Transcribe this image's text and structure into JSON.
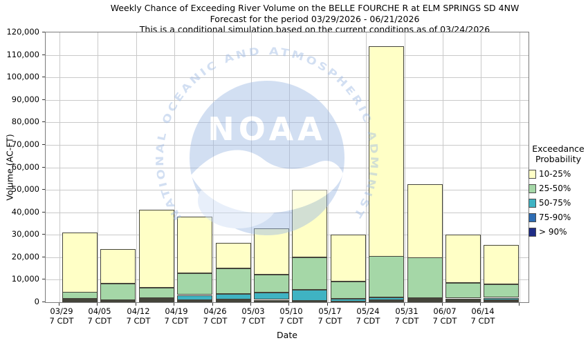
{
  "title_lines": [
    "Weekly Chance of Exceeding River Volume on the BELLE FOURCHE R at ELM SPRINGS SD 4NW",
    "Forecast for the period 03/29/2026 - 06/21/2026",
    "This is a conditional simulation based on the current conditions as of 03/24/2026"
  ],
  "y_axis": {
    "label": "Volume (AC-FT)",
    "tick_labels": [
      "0",
      "10,000",
      "20,000",
      "30,000",
      "40,000",
      "50,000",
      "60,000",
      "70,000",
      "80,000",
      "90,000",
      "100,000",
      "110,000",
      "120,000"
    ]
  },
  "x_axis": {
    "label": "Date",
    "tick_sub": "7 CDT",
    "categories": [
      "03/29",
      "04/05",
      "04/12",
      "04/19",
      "04/26",
      "05/03",
      "05/10",
      "05/17",
      "05/24",
      "05/31",
      "06/07",
      "06/14"
    ]
  },
  "legend": {
    "title_lines": [
      "Exceedance",
      "Probability"
    ],
    "items": [
      {
        "label": "10-25%",
        "color": "#FFFFC6"
      },
      {
        "label": "25-50%",
        "color": "#A5D7A7"
      },
      {
        "label": "50-75%",
        "color": "#3FB3C3"
      },
      {
        "label": "75-90%",
        "color": "#2E6DB4"
      },
      {
        "label": "> 90%",
        "color": "#1F2D86"
      }
    ]
  },
  "watermark": {
    "acronym": "NOAA",
    "ring_text": "NATIONAL OCEANIC AND ATMOSPHERIC ADMINISTRATION"
  },
  "chart_data": {
    "type": "bar",
    "stacked": true,
    "title": "Weekly Chance of Exceeding River Volume on the BELLE FOURCHE R at ELM SPRINGS SD 4NW",
    "subtitle": "Forecast for the period 03/29/2026 - 06/21/2026",
    "note": "This is a conditional simulation based on the current conditions as of 03/24/2026",
    "xlabel": "Date",
    "ylabel": "Volume (AC-FT)",
    "ylim": [
      0,
      120000
    ],
    "ystep": 10000,
    "grid": true,
    "legend_position": "right",
    "legend_title": "Exceedance Probability",
    "categories": [
      "03/29 7 CDT",
      "04/05 7 CDT",
      "04/12 7 CDT",
      "04/19 7 CDT",
      "04/26 7 CDT",
      "05/03 7 CDT",
      "05/10 7 CDT",
      "05/17 7 CDT",
      "05/24 7 CDT",
      "05/31 7 CDT",
      "06/07 7 CDT",
      "06/14 7 CDT"
    ],
    "series": [
      {
        "name": "> 90%",
        "color": "#1F2D86",
        "values": [
          500,
          350,
          750,
          450,
          500,
          450,
          300,
          250,
          450,
          600,
          500,
          400
        ]
      },
      {
        "name": "75-90%",
        "color": "#2E6DB4",
        "values": [
          500,
          300,
          600,
          600,
          600,
          650,
          300,
          200,
          350,
          500,
          450,
          550
        ]
      },
      {
        "name": "50-75%",
        "color": "#3FB3C3",
        "values": [
          450,
          400,
          500,
          2250,
          2500,
          3200,
          4850,
          1100,
          1200,
          600,
          750,
          1050
        ]
      },
      {
        "name": "25-50%",
        "color": "#A5D7A7",
        "values": [
          2950,
          7250,
          4650,
          9500,
          11400,
          7900,
          14550,
          7650,
          18300,
          18000,
          6800,
          5900
        ]
      },
      {
        "name": "10-25%",
        "color": "#FFFFC6",
        "values": [
          26600,
          15300,
          34700,
          25300,
          11400,
          20600,
          30200,
          20900,
          93700,
          32800,
          21400,
          17400
        ]
      }
    ],
    "stack_totals": [
      31000,
      23600,
      41200,
      38100,
      26400,
      32800,
      50200,
      30100,
      114000,
      52500,
      29900,
      25300
    ]
  }
}
